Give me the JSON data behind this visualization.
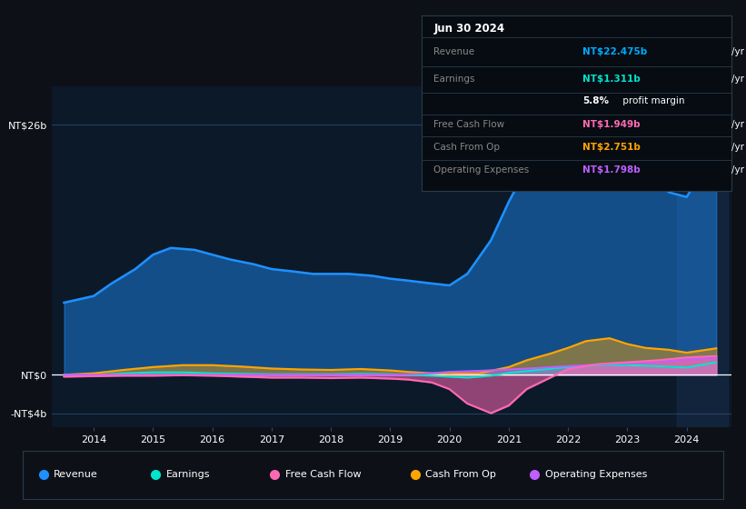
{
  "bg_color": "#0d1117",
  "plot_bg_color": "#0b1929",
  "grid_color": "#1e3a5f",
  "y_label_top": "NT$26b",
  "y_label_zero": "NT$0",
  "y_label_neg": "-NT$4b",
  "x_ticks": [
    2014,
    2015,
    2016,
    2017,
    2018,
    2019,
    2020,
    2021,
    2022,
    2023,
    2024
  ],
  "ylim": [
    -5.5,
    30
  ],
  "tooltip": {
    "date": "Jun 30 2024",
    "rows": [
      {
        "label": "Revenue",
        "val": "NT$22.475b",
        "unit": "/yr",
        "val_color": "#00aaff"
      },
      {
        "label": "Earnings",
        "val": "NT$1.311b",
        "unit": "/yr",
        "val_color": "#00e5cc"
      },
      {
        "label": "",
        "val": "5.8%",
        "unit": " profit margin",
        "val_color": "#ffffff"
      },
      {
        "label": "Free Cash Flow",
        "val": "NT$1.949b",
        "unit": "/yr",
        "val_color": "#ff69b4"
      },
      {
        "label": "Cash From Op",
        "val": "NT$2.751b",
        "unit": "/yr",
        "val_color": "#ffa500"
      },
      {
        "label": "Operating Expenses",
        "val": "NT$1.798b",
        "unit": "/yr",
        "val_color": "#bf5fff"
      }
    ]
  },
  "legend": [
    {
      "label": "Revenue",
      "color": "#1e90ff"
    },
    {
      "label": "Earnings",
      "color": "#00e5cc"
    },
    {
      "label": "Free Cash Flow",
      "color": "#ff69b4"
    },
    {
      "label": "Cash From Op",
      "color": "#ffa500"
    },
    {
      "label": "Operating Expenses",
      "color": "#bf5fff"
    }
  ],
  "revenue_color": "#1e90ff",
  "earnings_color": "#00e5cc",
  "fcf_color": "#ff69b4",
  "cfo_color": "#ffa500",
  "opex_color": "#bf5fff",
  "revenue_x": [
    2013.5,
    2014.0,
    2014.3,
    2014.7,
    2015.0,
    2015.3,
    2015.7,
    2016.0,
    2016.3,
    2016.7,
    2017.0,
    2017.3,
    2017.7,
    2018.0,
    2018.3,
    2018.7,
    2019.0,
    2019.3,
    2019.7,
    2020.0,
    2020.3,
    2020.7,
    2021.0,
    2021.3,
    2021.7,
    2022.0,
    2022.3,
    2022.7,
    2023.0,
    2023.3,
    2023.7,
    2024.0,
    2024.3,
    2024.5
  ],
  "revenue_y": [
    7.5,
    8.2,
    9.5,
    11.0,
    12.5,
    13.2,
    13.0,
    12.5,
    12.0,
    11.5,
    11.0,
    10.8,
    10.5,
    10.5,
    10.5,
    10.3,
    10.0,
    9.8,
    9.5,
    9.3,
    10.5,
    14.0,
    18.0,
    21.5,
    23.5,
    24.5,
    24.8,
    24.0,
    22.5,
    21.0,
    19.0,
    18.5,
    21.5,
    22.5
  ],
  "earnings_x": [
    2013.5,
    2014.0,
    2014.5,
    2015.0,
    2015.5,
    2016.0,
    2016.5,
    2017.0,
    2017.5,
    2018.0,
    2018.5,
    2019.0,
    2019.3,
    2019.7,
    2020.0,
    2020.3,
    2020.7,
    2021.0,
    2021.5,
    2022.0,
    2022.5,
    2023.0,
    2023.5,
    2024.0,
    2024.5
  ],
  "earnings_y": [
    -0.15,
    -0.05,
    0.15,
    0.25,
    0.25,
    0.15,
    0.1,
    0.05,
    0.05,
    0.05,
    0.1,
    0.05,
    0.0,
    -0.1,
    -0.2,
    -0.3,
    -0.1,
    0.2,
    0.5,
    0.8,
    1.0,
    1.0,
    0.9,
    0.75,
    1.3
  ],
  "fcf_x": [
    2013.5,
    2014.0,
    2014.5,
    2015.0,
    2015.5,
    2016.0,
    2016.5,
    2017.0,
    2017.5,
    2018.0,
    2018.5,
    2019.0,
    2019.3,
    2019.7,
    2020.0,
    2020.3,
    2020.7,
    2021.0,
    2021.3,
    2021.7,
    2022.0,
    2022.5,
    2023.0,
    2023.5,
    2024.0,
    2024.5
  ],
  "fcf_y": [
    -0.2,
    -0.15,
    -0.1,
    -0.1,
    -0.05,
    -0.1,
    -0.2,
    -0.3,
    -0.3,
    -0.35,
    -0.3,
    -0.4,
    -0.5,
    -0.8,
    -1.5,
    -3.0,
    -4.0,
    -3.2,
    -1.5,
    -0.3,
    0.6,
    1.1,
    1.3,
    1.5,
    1.8,
    1.95
  ],
  "cfo_x": [
    2013.5,
    2014.0,
    2014.5,
    2015.0,
    2015.5,
    2016.0,
    2016.5,
    2017.0,
    2017.5,
    2018.0,
    2018.5,
    2019.0,
    2019.3,
    2019.7,
    2020.0,
    2020.5,
    2021.0,
    2021.3,
    2021.7,
    2022.0,
    2022.3,
    2022.7,
    2023.0,
    2023.3,
    2023.7,
    2024.0,
    2024.5
  ],
  "cfo_y": [
    0.0,
    0.15,
    0.5,
    0.8,
    1.0,
    1.0,
    0.85,
    0.65,
    0.55,
    0.5,
    0.6,
    0.45,
    0.3,
    0.15,
    0.1,
    0.15,
    0.8,
    1.5,
    2.2,
    2.8,
    3.5,
    3.8,
    3.2,
    2.8,
    2.6,
    2.3,
    2.75
  ],
  "opex_x": [
    2013.5,
    2014.0,
    2014.5,
    2015.0,
    2015.5,
    2016.0,
    2016.5,
    2017.0,
    2017.5,
    2018.0,
    2018.5,
    2019.0,
    2019.3,
    2019.7,
    2020.0,
    2020.5,
    2021.0,
    2021.5,
    2022.0,
    2022.5,
    2023.0,
    2023.5,
    2024.0,
    2024.5
  ],
  "opex_y": [
    0.0,
    0.0,
    0.0,
    0.0,
    0.0,
    0.0,
    0.0,
    0.0,
    0.0,
    0.0,
    0.0,
    0.0,
    0.05,
    0.15,
    0.3,
    0.4,
    0.55,
    0.7,
    0.9,
    1.05,
    1.2,
    1.35,
    1.55,
    1.8
  ]
}
